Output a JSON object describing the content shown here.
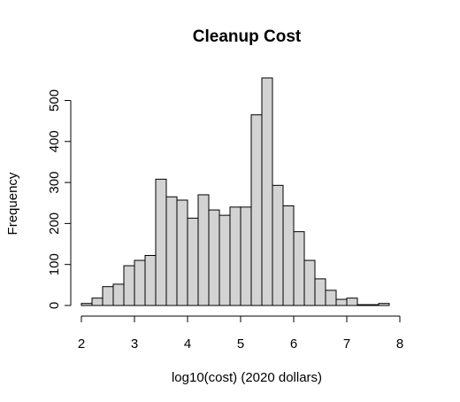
{
  "chart_data": {
    "type": "bar",
    "title": "Cleanup Cost",
    "xlabel": "log10(cost) (2020 dollars)",
    "ylabel": "Frequency",
    "bin_width": 0.2,
    "bins": [
      {
        "start": 2.0,
        "end": 2.2,
        "value": 5
      },
      {
        "start": 2.2,
        "end": 2.4,
        "value": 18
      },
      {
        "start": 2.4,
        "end": 2.6,
        "value": 46
      },
      {
        "start": 2.6,
        "end": 2.8,
        "value": 52
      },
      {
        "start": 2.8,
        "end": 3.0,
        "value": 97
      },
      {
        "start": 3.0,
        "end": 3.2,
        "value": 110
      },
      {
        "start": 3.2,
        "end": 3.4,
        "value": 122
      },
      {
        "start": 3.4,
        "end": 3.6,
        "value": 308
      },
      {
        "start": 3.6,
        "end": 3.8,
        "value": 265
      },
      {
        "start": 3.8,
        "end": 4.0,
        "value": 257
      },
      {
        "start": 4.0,
        "end": 4.2,
        "value": 213
      },
      {
        "start": 4.2,
        "end": 4.4,
        "value": 270
      },
      {
        "start": 4.4,
        "end": 4.6,
        "value": 233
      },
      {
        "start": 4.6,
        "end": 4.8,
        "value": 220
      },
      {
        "start": 4.8,
        "end": 5.0,
        "value": 240
      },
      {
        "start": 5.0,
        "end": 5.2,
        "value": 240
      },
      {
        "start": 5.2,
        "end": 5.4,
        "value": 465
      },
      {
        "start": 5.4,
        "end": 5.6,
        "value": 555
      },
      {
        "start": 5.6,
        "end": 5.8,
        "value": 293
      },
      {
        "start": 5.8,
        "end": 6.0,
        "value": 243
      },
      {
        "start": 6.0,
        "end": 6.2,
        "value": 180
      },
      {
        "start": 6.2,
        "end": 6.4,
        "value": 110
      },
      {
        "start": 6.4,
        "end": 6.6,
        "value": 65
      },
      {
        "start": 6.6,
        "end": 6.8,
        "value": 37
      },
      {
        "start": 6.8,
        "end": 7.0,
        "value": 15
      },
      {
        "start": 7.0,
        "end": 7.2,
        "value": 18
      },
      {
        "start": 7.2,
        "end": 7.4,
        "value": 2
      },
      {
        "start": 7.4,
        "end": 7.6,
        "value": 2
      },
      {
        "start": 7.6,
        "end": 7.8,
        "value": 5
      }
    ],
    "xlim": [
      2,
      8
    ],
    "ylim": [
      0,
      555
    ],
    "x_ticks": [
      2,
      3,
      4,
      5,
      6,
      7,
      8
    ],
    "y_ticks": [
      0,
      100,
      200,
      300,
      400,
      500
    ],
    "bar_color": "#d3d3d3",
    "grid": false,
    "legend": "none"
  }
}
